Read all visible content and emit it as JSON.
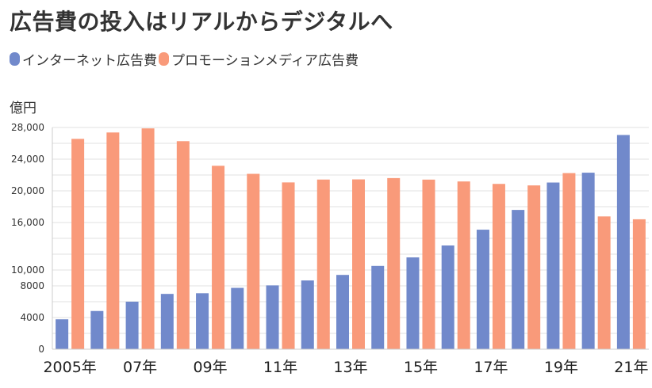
{
  "title": "広告費の投入はリアルからデジタルへ",
  "colors": {
    "internet": "#7189cb",
    "promotion": "#f99a7a",
    "grid": "#e2e2e2"
  },
  "chart_data": {
    "type": "bar",
    "title": "広告費の投入はリアルからデジタルへ",
    "ylabel": "億円",
    "xlabel": "",
    "ylim": [
      0,
      28000
    ],
    "yticks": [
      0,
      4000,
      8000,
      10000,
      16000,
      20000,
      24000,
      28000
    ],
    "ytick_labels": [
      "0",
      "4000",
      "8000",
      "10,000",
      "16,000",
      "20,000",
      "24,000",
      "28,000"
    ],
    "categories": [
      "2005",
      "2006",
      "2007",
      "2008",
      "2009",
      "2010",
      "2011",
      "2012",
      "2013",
      "2014",
      "2015",
      "2016",
      "2017",
      "2018",
      "2019",
      "2020",
      "2021"
    ],
    "xtick_labels": [
      "2005年",
      "07年",
      "09年",
      "11年",
      "13年",
      "15年",
      "17年",
      "19年",
      "21年"
    ],
    "xtick_indices": [
      0,
      2,
      4,
      6,
      8,
      10,
      12,
      14,
      16
    ],
    "legend": "top-left",
    "series": [
      {
        "name": "インターネット広告費",
        "values": [
          3777,
          4826,
          6003,
          6983,
          7069,
          7747,
          8062,
          8680,
          9381,
          10519,
          11594,
          13100,
          15094,
          17589,
          21048,
          22290,
          27052
        ]
      },
      {
        "name": "プロモーションメディア広告費",
        "values": [
          26563,
          27370,
          27886,
          26272,
          23162,
          22147,
          21062,
          21424,
          21446,
          21610,
          21417,
          21184,
          20875,
          20685,
          22239,
          16768,
          16408
        ]
      }
    ]
  }
}
